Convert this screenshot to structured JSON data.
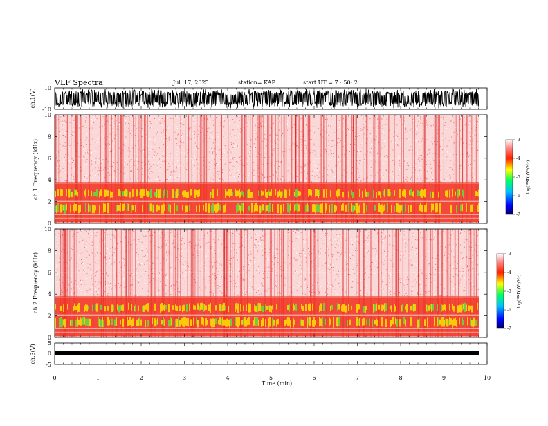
{
  "header": {
    "title": "VLF Spectra",
    "date": "Jul. 17, 2025",
    "station": "station= KAP",
    "start_ut": "start  UT =   7 : 50: 2"
  },
  "chart_data": [
    {
      "type": "line",
      "panel": "ch1-waveform",
      "ylabel": "ch.1(V)",
      "ylim": [
        -10,
        10
      ],
      "yticks": [
        "10",
        "-10"
      ],
      "xlim": [
        0,
        10
      ]
    },
    {
      "type": "heatmap",
      "panel": "ch1-spectrogram",
      "ylabel": "ch.1 Frequency (kHz)",
      "ylim": [
        0,
        10
      ],
      "yticks": [
        "0",
        "2",
        "4",
        "6",
        "8",
        "10"
      ],
      "xlim": [
        0,
        10
      ],
      "data_extent_min": 9.82,
      "colorbar": {
        "label": "log(PSD)(V²/Hz)",
        "ticks": [
          "-3",
          "-4",
          "-5",
          "-6",
          "-7"
        ],
        "range": [
          -7,
          -3
        ]
      }
    },
    {
      "type": "heatmap",
      "panel": "ch2-spectrogram",
      "ylabel": "ch.2 Frequency (kHz)",
      "ylim": [
        0,
        10
      ],
      "yticks": [
        "0",
        "2",
        "4",
        "6",
        "8",
        "10"
      ],
      "xlim": [
        0,
        10
      ],
      "data_extent_min": 9.82,
      "colorbar": {
        "label": "log(PSD)(V²/Hz)",
        "ticks": [
          "-3",
          "-4",
          "-5",
          "-6",
          "-7"
        ],
        "range": [
          -7,
          -3
        ]
      }
    },
    {
      "type": "line",
      "panel": "ch3-waveform",
      "ylabel": "ch.3(V)",
      "ylim": [
        -5,
        5
      ],
      "yticks": [
        "5",
        "0",
        "-5"
      ],
      "xlim": [
        0,
        10
      ],
      "xlabel": "Time  (min)",
      "xticks": [
        "0",
        "1",
        "2",
        "3",
        "4",
        "5",
        "6",
        "7",
        "8",
        "9",
        "10"
      ]
    }
  ]
}
